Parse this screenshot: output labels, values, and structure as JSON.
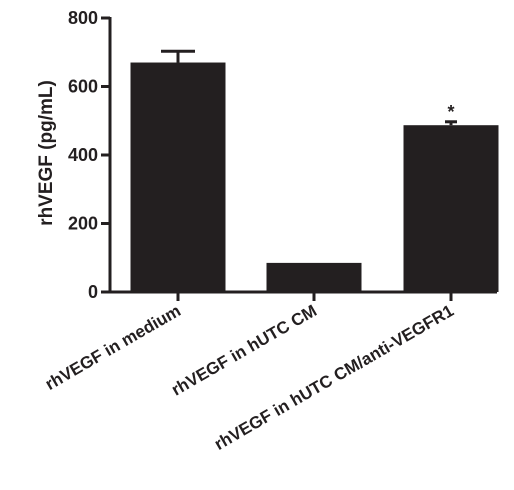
{
  "chart_data": {
    "type": "bar",
    "title": "",
    "xlabel": "",
    "ylabel": "rhVEGF (pg/mL)",
    "ylim": [
      0,
      800
    ],
    "yticks": [
      0,
      200,
      400,
      600,
      800
    ],
    "grid": false,
    "legend": "none",
    "categories": [
      "rhVEGF in medium",
      "rhVEGF in hUTC CM",
      "rhVEGF in hUTC CM/anti-VEGFR1"
    ],
    "values": [
      670,
      85,
      487
    ],
    "error_upper": [
      703,
      86,
      497
    ],
    "annotations": [
      "",
      "",
      "*"
    ],
    "bar_color": "#231f20"
  }
}
